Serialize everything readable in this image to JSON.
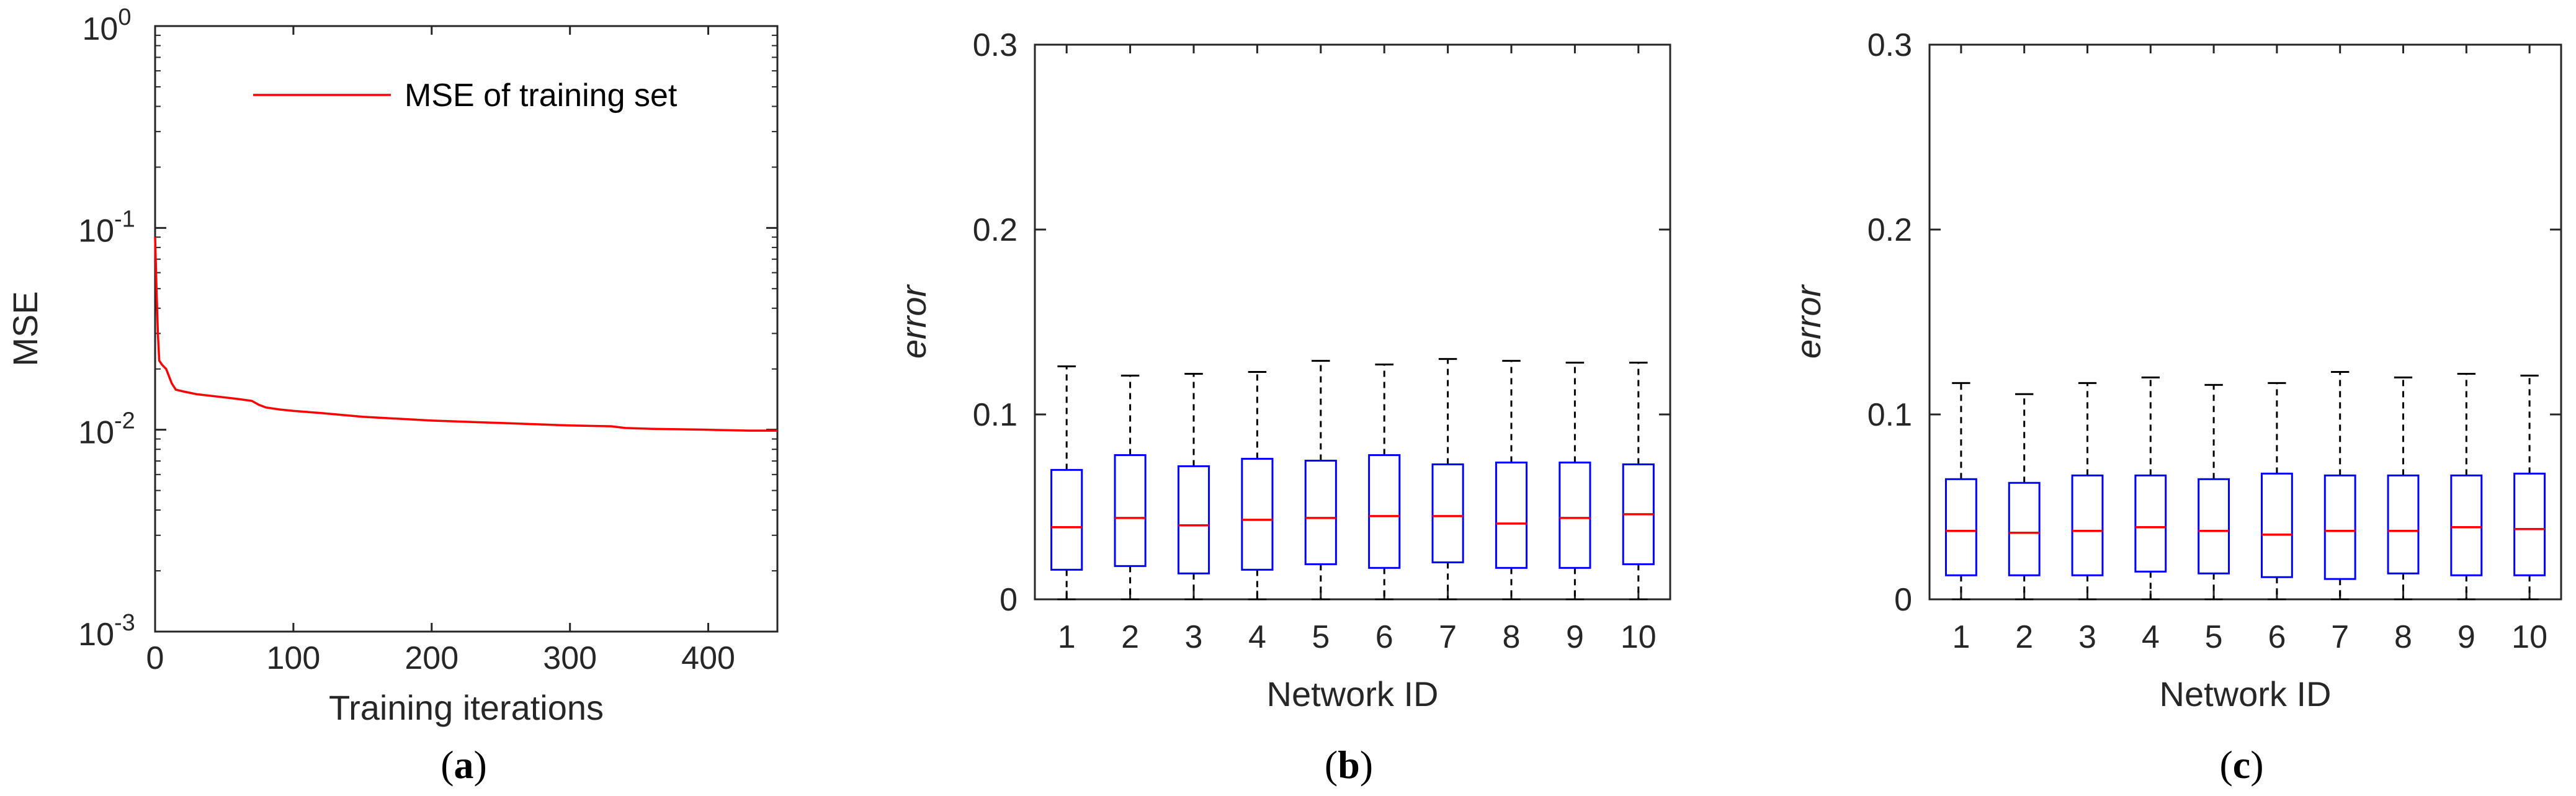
{
  "chart_data": [
    {
      "panel_label": "(a)",
      "panel_label_letter": "a",
      "type": "line",
      "xlabel": "Training iterations",
      "ylabel": "MSE",
      "xlim": [
        0,
        450
      ],
      "ylim": [
        0.001,
        1
      ],
      "yscale": "log",
      "x_ticks": [
        "0",
        "100",
        "200",
        "300",
        "400"
      ],
      "y_ticks": [
        {
          "base": "10",
          "exp": "0"
        },
        {
          "base": "10",
          "exp": "-1"
        },
        {
          "base": "10",
          "exp": "-2"
        },
        {
          "base": "10",
          "exp": "-3"
        }
      ],
      "legend": {
        "position": "top-right",
        "entries": [
          "MSE of training set"
        ]
      },
      "color": "#ff0000",
      "series": [
        {
          "name": "MSE of training set",
          "x": [
            0,
            1,
            2,
            3,
            5,
            8,
            12,
            15,
            20,
            30,
            45,
            60,
            70,
            75,
            80,
            90,
            100,
            120,
            150,
            200,
            250,
            300,
            330,
            340,
            360,
            400,
            430,
            450
          ],
          "y": [
            0.09,
            0.05,
            0.03,
            0.022,
            0.021,
            0.02,
            0.017,
            0.0158,
            0.0155,
            0.015,
            0.0146,
            0.0142,
            0.0139,
            0.0133,
            0.0129,
            0.0126,
            0.0124,
            0.0121,
            0.0116,
            0.0111,
            0.0108,
            0.0105,
            0.0104,
            0.0102,
            0.0101,
            0.01,
            0.0099,
            0.0099
          ]
        }
      ]
    },
    {
      "panel_label": "(b)",
      "panel_label_letter": "b",
      "type": "box",
      "xlabel": "Network ID",
      "ylabel": "error",
      "ylim": [
        0,
        0.3
      ],
      "y_ticks": [
        "0",
        "0.1",
        "0.2",
        "0.3"
      ],
      "categories": [
        "1",
        "2",
        "3",
        "4",
        "5",
        "6",
        "7",
        "8",
        "9",
        "10"
      ],
      "box_color": "#0000ff",
      "median_color": "#ff0000",
      "boxes": [
        {
          "min": 0,
          "q1": 0.016,
          "median": 0.039,
          "q3": 0.07,
          "max": 0.126
        },
        {
          "min": 0,
          "q1": 0.018,
          "median": 0.044,
          "q3": 0.078,
          "max": 0.121
        },
        {
          "min": 0,
          "q1": 0.014,
          "median": 0.04,
          "q3": 0.072,
          "max": 0.122
        },
        {
          "min": 0,
          "q1": 0.016,
          "median": 0.043,
          "q3": 0.076,
          "max": 0.123
        },
        {
          "min": 0,
          "q1": 0.019,
          "median": 0.044,
          "q3": 0.075,
          "max": 0.129
        },
        {
          "min": 0,
          "q1": 0.017,
          "median": 0.045,
          "q3": 0.078,
          "max": 0.127
        },
        {
          "min": 0,
          "q1": 0.02,
          "median": 0.045,
          "q3": 0.073,
          "max": 0.13
        },
        {
          "min": 0,
          "q1": 0.017,
          "median": 0.041,
          "q3": 0.074,
          "max": 0.129
        },
        {
          "min": 0,
          "q1": 0.017,
          "median": 0.044,
          "q3": 0.074,
          "max": 0.128
        },
        {
          "min": 0,
          "q1": 0.019,
          "median": 0.046,
          "q3": 0.073,
          "max": 0.128
        }
      ]
    },
    {
      "panel_label": "(c)",
      "panel_label_letter": "c",
      "type": "box",
      "xlabel": "Network ID",
      "ylabel": "error",
      "ylim": [
        0,
        0.3
      ],
      "y_ticks": [
        "0",
        "0.1",
        "0.2",
        "0.3"
      ],
      "categories": [
        "1",
        "2",
        "3",
        "4",
        "5",
        "6",
        "7",
        "8",
        "9",
        "10"
      ],
      "box_color": "#0000ff",
      "median_color": "#ff0000",
      "boxes": [
        {
          "min": 0,
          "q1": 0.013,
          "median": 0.037,
          "q3": 0.065,
          "max": 0.117
        },
        {
          "min": 0,
          "q1": 0.013,
          "median": 0.036,
          "q3": 0.063,
          "max": 0.111
        },
        {
          "min": 0,
          "q1": 0.013,
          "median": 0.037,
          "q3": 0.067,
          "max": 0.117
        },
        {
          "min": 0,
          "q1": 0.015,
          "median": 0.039,
          "q3": 0.067,
          "max": 0.12
        },
        {
          "min": 0,
          "q1": 0.014,
          "median": 0.037,
          "q3": 0.065,
          "max": 0.116
        },
        {
          "min": 0,
          "q1": 0.012,
          "median": 0.035,
          "q3": 0.068,
          "max": 0.117
        },
        {
          "min": 0,
          "q1": 0.011,
          "median": 0.037,
          "q3": 0.067,
          "max": 0.123
        },
        {
          "min": 0,
          "q1": 0.014,
          "median": 0.037,
          "q3": 0.067,
          "max": 0.12
        },
        {
          "min": 0,
          "q1": 0.013,
          "median": 0.039,
          "q3": 0.067,
          "max": 0.122
        },
        {
          "min": 0,
          "q1": 0.013,
          "median": 0.038,
          "q3": 0.068,
          "max": 0.121
        }
      ]
    }
  ]
}
